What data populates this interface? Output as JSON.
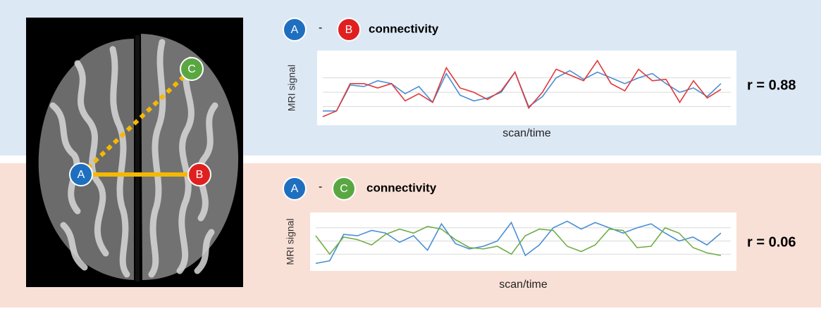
{
  "brain": {
    "nodes": [
      "A",
      "B",
      "C"
    ]
  },
  "chart_data": [
    {
      "type": "line",
      "heading": [
        "A",
        "-",
        "B",
        "connectivity"
      ],
      "annotation": "r = 0.88",
      "y_label": "MRI signal",
      "x_label": "scan/time",
      "ylim": [
        0,
        4.5
      ],
      "yticks": [
        1,
        2,
        3
      ],
      "grid": true,
      "series": [
        {
          "name": "A",
          "color": "#4a8fd4",
          "values": [
            0.7,
            0.7,
            2.5,
            2.4,
            2.8,
            2.6,
            1.9,
            2.4,
            1.3,
            3.3,
            1.8,
            1.4,
            1.6,
            2.0,
            3.4,
            1.0,
            1.7,
            3.0,
            3.5,
            2.9,
            3.4,
            3.0,
            2.6,
            3.0,
            3.3,
            2.6,
            2.0,
            2.3,
            1.7,
            2.6
          ]
        },
        {
          "name": "B",
          "color": "#e0393b",
          "values": [
            0.3,
            0.7,
            2.6,
            2.6,
            2.3,
            2.6,
            1.4,
            1.9,
            1.3,
            3.7,
            2.3,
            2.0,
            1.5,
            2.1,
            3.4,
            0.9,
            2.0,
            3.6,
            3.2,
            2.8,
            4.2,
            2.6,
            2.1,
            3.6,
            2.8,
            2.9,
            1.3,
            2.8,
            1.6,
            2.2
          ]
        }
      ]
    },
    {
      "type": "line",
      "heading": [
        "A",
        "-",
        "C",
        "connectivity"
      ],
      "annotation": "r = 0.06",
      "y_label": "MRI signal",
      "x_label": "scan/time",
      "ylim": [
        0,
        4
      ],
      "yticks": [
        1,
        2,
        3
      ],
      "grid": true,
      "series": [
        {
          "name": "A",
          "color": "#4a8fd4",
          "values": [
            0.3,
            0.5,
            2.5,
            2.4,
            2.8,
            2.6,
            1.9,
            2.4,
            1.3,
            3.3,
            1.8,
            1.4,
            1.6,
            2.0,
            3.4,
            0.9,
            1.7,
            3.0,
            3.5,
            2.9,
            3.4,
            3.0,
            2.6,
            3.0,
            3.3,
            2.6,
            2.0,
            2.3,
            1.7,
            2.6
          ]
        },
        {
          "name": "C",
          "color": "#70ad47",
          "values": [
            2.4,
            1.0,
            2.3,
            2.1,
            1.7,
            2.5,
            2.9,
            2.6,
            3.1,
            2.9,
            2.1,
            1.5,
            1.4,
            1.6,
            1.0,
            2.4,
            2.9,
            2.8,
            1.6,
            1.2,
            1.7,
            2.9,
            2.8,
            1.5,
            1.6,
            3.0,
            2.6,
            1.5,
            1.1,
            0.9
          ]
        }
      ]
    }
  ]
}
